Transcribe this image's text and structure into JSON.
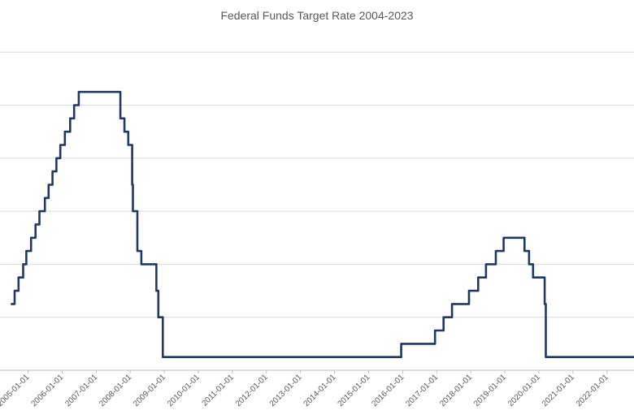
{
  "chart_data": {
    "type": "line",
    "title": "Federal Funds Target Rate 2004-2023",
    "xlabel": "",
    "ylabel": "",
    "ylim": [
      0,
      6
    ],
    "grid": true,
    "legend": "none",
    "x_tick_labels": [
      "2005-01-01",
      "2006-01-01",
      "2007-01-01",
      "2008-01-01",
      "2009-01-01",
      "2010-01-01",
      "2011-01-01",
      "2012-01-01",
      "2013-01-01",
      "2014-01-01",
      "2015-01-01",
      "2016-01-01",
      "2017-01-01",
      "2018-01-01",
      "2019-01-01",
      "2020-01-01",
      "2021-01-01",
      "2022-01-01"
    ],
    "colors": {
      "line": "#1f3864",
      "grid": "#d9d9d9",
      "text": "#595959"
    },
    "series": [
      {
        "values": [
          [
            "2004-06-30",
            1.25
          ],
          [
            "2004-08-10",
            1.5
          ],
          [
            "2004-09-21",
            1.75
          ],
          [
            "2004-11-10",
            2.0
          ],
          [
            "2004-12-14",
            2.25
          ],
          [
            "2005-02-02",
            2.5
          ],
          [
            "2005-03-22",
            2.75
          ],
          [
            "2005-05-03",
            3.0
          ],
          [
            "2005-06-30",
            3.25
          ],
          [
            "2005-08-09",
            3.5
          ],
          [
            "2005-09-20",
            3.75
          ],
          [
            "2005-11-01",
            4.0
          ],
          [
            "2005-12-13",
            4.25
          ],
          [
            "2006-01-31",
            4.5
          ],
          [
            "2006-03-28",
            4.75
          ],
          [
            "2006-05-10",
            5.0
          ],
          [
            "2006-06-29",
            5.25
          ],
          [
            "2007-09-18",
            4.75
          ],
          [
            "2007-10-31",
            4.5
          ],
          [
            "2007-12-11",
            4.25
          ],
          [
            "2008-01-22",
            3.5
          ],
          [
            "2008-01-30",
            3.0
          ],
          [
            "2008-03-18",
            2.25
          ],
          [
            "2008-04-30",
            2.0
          ],
          [
            "2008-10-08",
            1.5
          ],
          [
            "2008-10-29",
            1.0
          ],
          [
            "2008-12-16",
            0.25
          ],
          [
            "2015-12-16",
            0.5
          ],
          [
            "2016-12-14",
            0.75
          ],
          [
            "2017-03-15",
            1.0
          ],
          [
            "2017-06-14",
            1.25
          ],
          [
            "2017-12-13",
            1.5
          ],
          [
            "2018-03-21",
            1.75
          ],
          [
            "2018-06-13",
            2.0
          ],
          [
            "2018-09-26",
            2.25
          ],
          [
            "2018-12-19",
            2.5
          ],
          [
            "2019-07-31",
            2.25
          ],
          [
            "2019-09-18",
            2.0
          ],
          [
            "2019-10-30",
            1.75
          ],
          [
            "2020-03-03",
            1.25
          ],
          [
            "2020-03-15",
            0.25
          ],
          [
            "2022-03-16",
            0.25
          ]
        ]
      }
    ]
  }
}
